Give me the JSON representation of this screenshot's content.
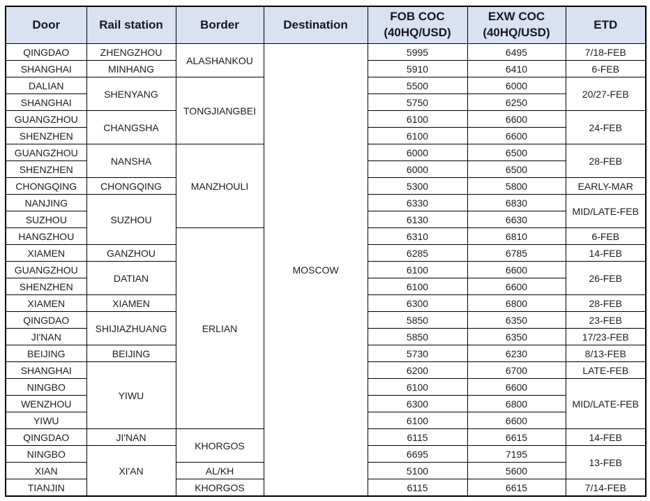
{
  "colors": {
    "header_background": "#d9e1f2",
    "grid_border": "#000000",
    "header_text": "#15181f",
    "cell_text": "#1c1c1c",
    "page_background": "#ffffff"
  },
  "table": {
    "title_semantic": "rail-freight-price-table",
    "headers": [
      {
        "label": "Door"
      },
      {
        "label": "Rail station"
      },
      {
        "label": "Border"
      },
      {
        "label": "Destination"
      },
      {
        "label": "FOB COC",
        "sub": "(40HQ/USD)"
      },
      {
        "label": "EXW COC",
        "sub": "(40HQ/USD)"
      },
      {
        "label": "ETD"
      }
    ],
    "rows": 27,
    "columns": {
      "door": [
        "QINGDAO",
        "SHANGHAI",
        "DALIAN",
        "SHANGHAI",
        "GUANGZHOU",
        "SHENZHEN",
        "GUANGZHOU",
        "SHENZHEN",
        "CHONGQING",
        "NANJING",
        "SUZHOU",
        "HANGZHOU",
        "XIAMEN",
        "GUANGZHOU",
        "SHENZHEN",
        "XIAMEN",
        "QINGDAO",
        "JI'NAN",
        "BEIJING",
        "SHANGHAI",
        "NINGBO",
        "WENZHOU",
        "YIWU",
        "QINGDAO",
        "NINGBO",
        "XIAN",
        "TIANJIN"
      ],
      "rail_station": [
        {
          "label": "ZHENGZHOU",
          "span": 1
        },
        {
          "label": "MINHANG",
          "span": 1
        },
        {
          "label": "SHENYANG",
          "span": 2
        },
        {
          "label": "CHANGSHA",
          "span": 2
        },
        {
          "label": "NANSHA",
          "span": 2
        },
        {
          "label": "CHONGQING",
          "span": 1
        },
        {
          "label": "SUZHOU",
          "span": 3
        },
        {
          "label": "GANZHOU",
          "span": 1
        },
        {
          "label": "DATIAN",
          "span": 2
        },
        {
          "label": "XIAMEN",
          "span": 1
        },
        {
          "label": "SHIJIAZHUANG",
          "span": 2
        },
        {
          "label": "BEIJING",
          "span": 1
        },
        {
          "label": "YIWU",
          "span": 4
        },
        {
          "label": "JI'NAN",
          "span": 1
        },
        {
          "label": "XI'AN",
          "span": 3
        }
      ],
      "border": [
        {
          "label": "ALASHANKOU",
          "span": 2
        },
        {
          "label": "TONGJIANGBEI",
          "span": 4
        },
        {
          "label": "MANZHOULI",
          "span": 5
        },
        {
          "label": "ERLIAN",
          "span": 12
        },
        {
          "label": "KHORGOS",
          "span": 2
        },
        {
          "label": "AL/KH",
          "span": 1
        },
        {
          "label": "KHORGOS",
          "span": 1
        }
      ],
      "destination": [
        {
          "label": "MOSCOW",
          "span": 27
        }
      ],
      "fob_coc": [
        5995,
        5910,
        5500,
        5750,
        6100,
        6100,
        6000,
        6000,
        5300,
        6330,
        6130,
        6310,
        6285,
        6100,
        6100,
        6300,
        5850,
        5850,
        5730,
        6200,
        6100,
        6300,
        6100,
        6115,
        6695,
        5100,
        6115
      ],
      "exw_coc": [
        6495,
        6410,
        6000,
        6250,
        6600,
        6600,
        6500,
        6500,
        5800,
        6830,
        6630,
        6810,
        6785,
        6600,
        6600,
        6800,
        6350,
        6350,
        6230,
        6700,
        6600,
        6800,
        6600,
        6615,
        7195,
        5600,
        6615
      ],
      "etd": [
        {
          "label": "7/18-FEB",
          "span": 1
        },
        {
          "label": "6-FEB",
          "span": 1
        },
        {
          "label": "20/27-FEB",
          "span": 2
        },
        {
          "label": "24-FEB",
          "span": 2
        },
        {
          "label": "28-FEB",
          "span": 2
        },
        {
          "label": "EARLY-MAR",
          "span": 1
        },
        {
          "label": "MID/LATE-FEB",
          "span": 2
        },
        {
          "label": "6-FEB",
          "span": 1
        },
        {
          "label": "14-FEB",
          "span": 1
        },
        {
          "label": "26-FEB",
          "span": 2
        },
        {
          "label": "28-FEB",
          "span": 1
        },
        {
          "label": "23-FEB",
          "span": 1
        },
        {
          "label": "17/23-FEB",
          "span": 1
        },
        {
          "label": "8/13-FEB",
          "span": 1
        },
        {
          "label": "LATE-FEB",
          "span": 1
        },
        {
          "label": "MID/LATE-FEB",
          "span": 3
        },
        {
          "label": "14-FEB",
          "span": 1
        },
        {
          "label": "13-FEB",
          "span": 2
        },
        {
          "label": "7/14-FEB",
          "span": 1
        }
      ]
    }
  }
}
